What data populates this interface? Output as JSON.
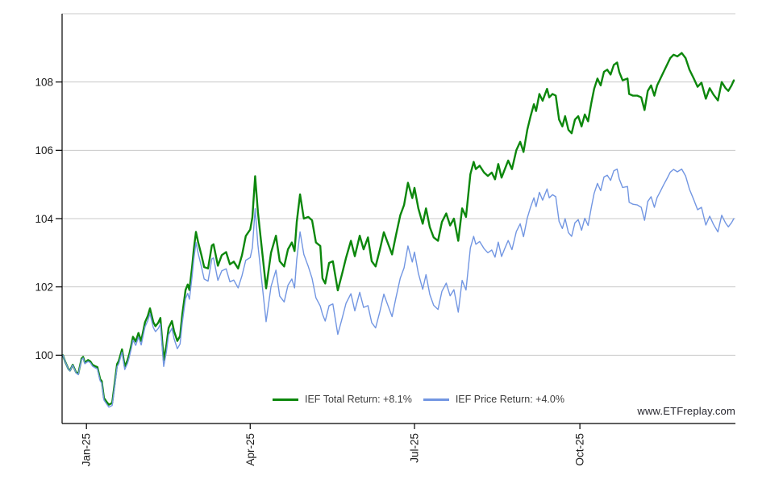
{
  "page": {
    "background": "#ffffff"
  },
  "watermark": {
    "text": "www.ETFreplay.com",
    "color": "#26262e"
  },
  "legend": {
    "text_color": "#3c3c3c",
    "items": [
      {
        "label": "IEF Total Return: +8.1%",
        "color": "#0c870c"
      },
      {
        "label": "IEF Price Return: +4.0%",
        "color": "#7296e2"
      }
    ]
  },
  "chart_data": {
    "type": "line",
    "title": "",
    "xlabel": "",
    "ylabel": "",
    "x_unit": "months since series start (mid-Dec-2024)",
    "xlim": [
      0,
      12.28
    ],
    "ylim": [
      98,
      110
    ],
    "grid": "horizontal",
    "legend_position": "bottom-center",
    "y_gridlines": [
      100,
      102,
      104,
      106,
      108,
      110
    ],
    "y_ticks": [
      100,
      102,
      104,
      106,
      108
    ],
    "x_ticks": [
      {
        "t": 0.43,
        "label": "Jan-25"
      },
      {
        "t": 3.42,
        "label": "Apr-25"
      },
      {
        "t": 6.42,
        "label": "Jul-25"
      },
      {
        "t": 9.44,
        "label": "Oct-25"
      }
    ],
    "colors": {
      "grid": "#c8c8c8",
      "axis": "#000000",
      "tick_label": "#1a1a1a"
    },
    "x": [
      0.0,
      0.04,
      0.1,
      0.13,
      0.18,
      0.24,
      0.28,
      0.34,
      0.37,
      0.4,
      0.46,
      0.5,
      0.54,
      0.6,
      0.63,
      0.68,
      0.71,
      0.75,
      0.8,
      0.84,
      0.9,
      0.94,
      0.99,
      1.02,
      1.08,
      1.13,
      1.18,
      1.21,
      1.25,
      1.28,
      1.33,
      1.38,
      1.43,
      1.5,
      1.55,
      1.59,
      1.65,
      1.69,
      1.74,
      1.78,
      1.84,
      1.89,
      1.93,
      1.99,
      2.03,
      2.09,
      2.14,
      2.18,
      2.24,
      2.28,
      2.31,
      2.36,
      2.39,
      2.43,
      2.47,
      2.53,
      2.58,
      2.65,
      2.72,
      2.75,
      2.83,
      2.9,
      2.98,
      3.05,
      3.12,
      3.2,
      3.27,
      3.34,
      3.42,
      3.46,
      3.51,
      3.56,
      3.62,
      3.71,
      3.8,
      3.89,
      3.96,
      4.04,
      4.11,
      4.18,
      4.23,
      4.27,
      4.33,
      4.4,
      4.48,
      4.55,
      4.62,
      4.7,
      4.74,
      4.79,
      4.86,
      4.93,
      5.02,
      5.1,
      5.17,
      5.26,
      5.33,
      5.42,
      5.49,
      5.57,
      5.64,
      5.71,
      5.79,
      5.86,
      5.93,
      6.01,
      6.08,
      6.16,
      6.23,
      6.3,
      6.38,
      6.42,
      6.49,
      6.57,
      6.63,
      6.7,
      6.77,
      6.85,
      6.92,
      7.0,
      7.07,
      7.14,
      7.22,
      7.29,
      7.36,
      7.44,
      7.5,
      7.54,
      7.61,
      7.69,
      7.76,
      7.83,
      7.89,
      7.95,
      8.01,
      8.07,
      8.13,
      8.2,
      8.28,
      8.35,
      8.41,
      8.48,
      8.54,
      8.6,
      8.64,
      8.7,
      8.76,
      8.84,
      8.88,
      8.94,
      9.0,
      9.06,
      9.12,
      9.17,
      9.23,
      9.29,
      9.35,
      9.41,
      9.47,
      9.53,
      9.59,
      9.65,
      9.7,
      9.76,
      9.82,
      9.88,
      9.94,
      10.0,
      10.06,
      10.12,
      10.16,
      10.22,
      10.31,
      10.34,
      10.41,
      10.49,
      10.56,
      10.62,
      10.68,
      10.74,
      10.8,
      10.85,
      10.91,
      10.97,
      11.03,
      11.09,
      11.15,
      11.22,
      11.3,
      11.37,
      11.44,
      11.52,
      11.59,
      11.66,
      11.74,
      11.81,
      11.88,
      11.96,
      12.03,
      12.1,
      12.15,
      12.21,
      12.25
    ],
    "series": [
      {
        "name": "IEF Total Return",
        "final_return_pct": "+8.1%",
        "color": "#0c870c",
        "stroke_width": 2.4,
        "values": [
          100.0,
          99.82,
          99.6,
          99.55,
          99.72,
          99.5,
          99.45,
          99.9,
          99.95,
          99.78,
          99.86,
          99.82,
          99.72,
          99.67,
          99.65,
          99.3,
          99.24,
          98.75,
          98.63,
          98.55,
          98.6,
          99.1,
          99.74,
          99.83,
          100.17,
          99.67,
          99.85,
          100.02,
          100.3,
          100.54,
          100.4,
          100.65,
          100.42,
          100.97,
          101.15,
          101.37,
          100.97,
          100.85,
          100.95,
          101.09,
          99.86,
          100.3,
          100.8,
          101.0,
          100.7,
          100.42,
          100.56,
          101.2,
          101.91,
          102.07,
          101.91,
          102.6,
          103.09,
          103.61,
          103.3,
          102.93,
          102.58,
          102.54,
          103.21,
          103.25,
          102.62,
          102.93,
          103.02,
          102.66,
          102.74,
          102.54,
          102.93,
          103.49,
          103.68,
          104.04,
          105.24,
          104.2,
          103.3,
          101.96,
          103.0,
          103.5,
          102.75,
          102.6,
          103.1,
          103.3,
          103.05,
          103.9,
          104.71,
          104.0,
          104.05,
          103.95,
          103.3,
          103.2,
          102.25,
          102.1,
          102.7,
          102.75,
          101.9,
          102.4,
          102.85,
          103.35,
          102.9,
          103.5,
          103.1,
          103.45,
          102.75,
          102.6,
          103.1,
          103.6,
          103.3,
          102.95,
          103.5,
          104.1,
          104.4,
          105.05,
          104.6,
          104.9,
          104.3,
          103.85,
          104.3,
          103.75,
          103.45,
          103.35,
          103.9,
          104.15,
          103.8,
          104.0,
          103.35,
          104.3,
          104.05,
          105.3,
          105.66,
          105.45,
          105.55,
          105.35,
          105.25,
          105.35,
          105.15,
          105.6,
          105.2,
          105.45,
          105.7,
          105.45,
          106.0,
          106.25,
          105.95,
          106.6,
          107.0,
          107.35,
          107.15,
          107.65,
          107.45,
          107.8,
          107.55,
          107.65,
          107.6,
          106.9,
          106.7,
          107.0,
          106.6,
          106.5,
          106.9,
          107.0,
          106.7,
          107.05,
          106.85,
          107.4,
          107.8,
          108.1,
          107.9,
          108.3,
          108.36,
          108.22,
          108.5,
          108.57,
          108.29,
          108.05,
          108.1,
          107.65,
          107.6,
          107.6,
          107.55,
          107.18,
          107.74,
          107.9,
          107.6,
          107.9,
          108.1,
          108.3,
          108.5,
          108.7,
          108.8,
          108.75,
          108.85,
          108.7,
          108.36,
          108.1,
          107.86,
          107.98,
          107.51,
          107.82,
          107.63,
          107.46,
          108.0,
          107.82,
          107.74,
          107.9,
          108.05
        ]
      },
      {
        "name": "IEF Price Return",
        "final_return_pct": "+4.0%",
        "color": "#7296e2",
        "stroke_width": 1.4,
        "values": [
          100.0,
          99.82,
          99.59,
          99.54,
          99.71,
          99.48,
          99.43,
          99.87,
          99.92,
          99.75,
          99.82,
          99.78,
          99.68,
          99.62,
          99.6,
          99.25,
          99.18,
          98.69,
          98.57,
          98.48,
          98.53,
          99.03,
          99.66,
          99.75,
          100.09,
          99.58,
          99.76,
          99.93,
          100.2,
          100.44,
          100.29,
          100.53,
          100.3,
          100.84,
          101.01,
          101.22,
          100.81,
          100.69,
          100.78,
          100.91,
          99.67,
          100.11,
          100.6,
          100.79,
          100.48,
          100.19,
          100.33,
          100.96,
          101.66,
          101.81,
          101.64,
          102.32,
          102.8,
          103.3,
          102.98,
          102.59,
          102.23,
          102.17,
          102.82,
          102.85,
          102.19,
          102.47,
          102.53,
          102.15,
          102.2,
          101.97,
          102.33,
          102.78,
          102.86,
          103.15,
          104.29,
          103.24,
          102.33,
          100.98,
          102.01,
          102.49,
          101.73,
          101.56,
          102.05,
          102.23,
          101.97,
          102.81,
          103.61,
          102.95,
          102.6,
          102.25,
          101.68,
          101.44,
          101.2,
          101.0,
          101.45,
          101.5,
          100.61,
          101.09,
          101.52,
          101.8,
          101.3,
          101.84,
          101.4,
          101.45,
          100.95,
          100.8,
          101.29,
          101.79,
          101.48,
          101.13,
          101.67,
          102.26,
          102.56,
          103.2,
          102.73,
          103.02,
          102.4,
          101.93,
          102.36,
          101.78,
          101.46,
          101.34,
          101.87,
          102.11,
          101.74,
          101.92,
          101.26,
          102.19,
          101.91,
          103.14,
          103.48,
          103.25,
          103.33,
          103.12,
          103.0,
          103.08,
          102.87,
          103.31,
          102.89,
          103.13,
          103.36,
          103.09,
          103.62,
          103.85,
          103.47,
          104.02,
          104.34,
          104.61,
          104.35,
          104.77,
          104.54,
          104.87,
          104.61,
          104.7,
          104.64,
          103.92,
          103.71,
          104.0,
          103.59,
          103.48,
          103.88,
          103.97,
          103.66,
          104.01,
          103.8,
          104.34,
          104.74,
          105.03,
          104.82,
          105.22,
          105.27,
          105.12,
          105.4,
          105.45,
          105.16,
          104.91,
          104.94,
          104.48,
          104.42,
          104.4,
          104.33,
          103.95,
          104.5,
          104.64,
          104.33,
          104.62,
          104.8,
          104.99,
          105.17,
          105.36,
          105.44,
          105.37,
          105.45,
          105.25,
          104.86,
          104.55,
          104.26,
          104.33,
          103.81,
          104.07,
          103.83,
          103.61,
          104.1,
          103.87,
          103.76,
          103.88,
          104.0
        ]
      }
    ]
  }
}
